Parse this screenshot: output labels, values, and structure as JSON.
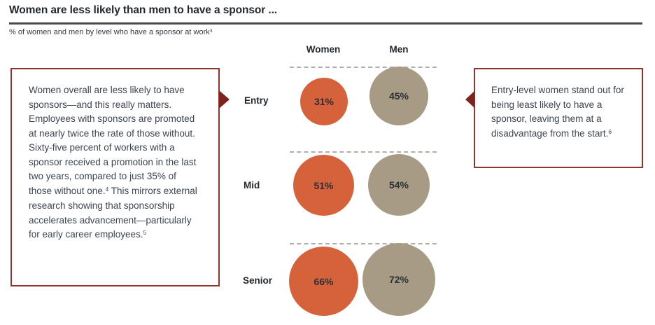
{
  "header": {
    "title": "Women are less likely than men to have a sponsor ...",
    "subtitle": "% of women and men by level who have a sponsor at work",
    "subtitle_footnote": "3"
  },
  "left_note": {
    "text_1": "Women overall are less likely to have sponsors—and this really matters. Employees with sponsors are promoted at nearly twice the rate of those without. Sixty-five percent of workers with a sponsor received a promotion in the last two years, compared to just 35% of those without one.",
    "footnote_1": "4",
    "text_2": " This mirrors external research showing that sponsorship accelerates advancement—particularly for early career employees.",
    "footnote_2": "5"
  },
  "right_note": {
    "text": "Entry-level women stand out for being least likely to have a sponsor, leaving them at a disadvantage from the start.",
    "footnote": "6"
  },
  "chart": {
    "columns": {
      "women": "Women",
      "men": "Men"
    },
    "rows": [
      {
        "label": "Entry",
        "women": "31%",
        "men": "45%"
      },
      {
        "label": "Mid",
        "women": "51%",
        "men": "54%"
      },
      {
        "label": "Senior",
        "women": "66%",
        "men": "72%"
      }
    ]
  },
  "chart_data": {
    "type": "bar",
    "visual_style": "proportional-area-circles",
    "title": "Women are less likely than men to have a sponsor ...",
    "subtitle": "% of women and men by level who have a sponsor at work",
    "categories": [
      "Entry",
      "Mid",
      "Senior"
    ],
    "series": [
      {
        "name": "Women",
        "values": [
          31,
          51,
          66
        ],
        "color": "#d6623c"
      },
      {
        "name": "Men",
        "values": [
          45,
          54,
          72
        ],
        "color": "#a89b85"
      }
    ],
    "unit": "%",
    "value_labels": true,
    "ylim": [
      0,
      100
    ],
    "grid": false,
    "legend_position": "top-column-headers"
  },
  "colors": {
    "women_circle": "#d6623c",
    "men_circle": "#a89b85",
    "note_border": "#93342b",
    "callout_arrow": "#7c241d",
    "title_text": "#23272e",
    "body_text": "#3d4551",
    "title_rule": "#4a4a4a",
    "dashed_line": "#b2ada7"
  }
}
